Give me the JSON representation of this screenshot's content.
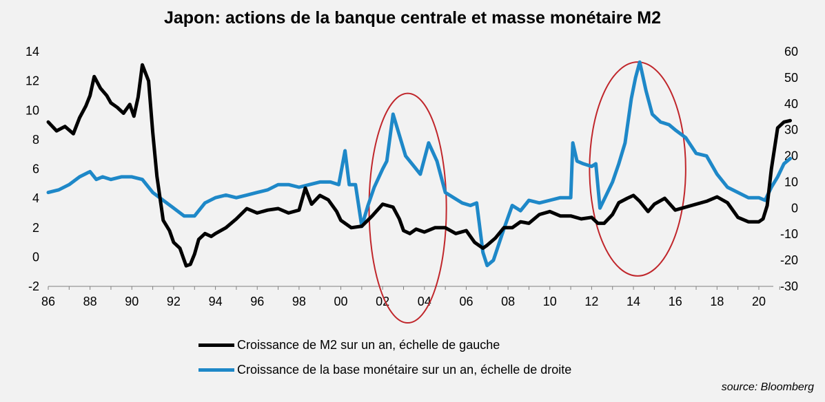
{
  "chart_data": {
    "type": "line",
    "title": "Japon: actions de la banque centrale et masse monétaire M2",
    "source": "source: Bloomberg",
    "x_tick_labels": [
      "86",
      "88",
      "90",
      "92",
      "94",
      "96",
      "98",
      "00",
      "02",
      "04",
      "06",
      "08",
      "10",
      "12",
      "14",
      "16",
      "18",
      "20"
    ],
    "x_ticks": [
      1986,
      1988,
      1990,
      1992,
      1994,
      1996,
      1998,
      2000,
      2002,
      2004,
      2006,
      2008,
      2010,
      2012,
      2014,
      2016,
      2018,
      2020
    ],
    "xlim": [
      1986,
      2021.8
    ],
    "y_left": {
      "ticks": [
        14,
        12,
        10,
        8,
        6,
        4,
        2,
        0,
        -2
      ],
      "ylim": [
        -2,
        14
      ]
    },
    "y_right": {
      "ticks": [
        60,
        50,
        40,
        30,
        20,
        10,
        0,
        -10,
        -20,
        -30
      ],
      "ylim": [
        -30,
        60
      ]
    },
    "legend_placement": "bottom",
    "grid": false,
    "series": [
      {
        "name": "Croissance de M2 sur un an, échelle de gauche",
        "axis": "left",
        "color": "#000000",
        "x": [
          1986.0,
          1986.4,
          1986.8,
          1987.2,
          1987.5,
          1987.8,
          1988.0,
          1988.2,
          1988.5,
          1988.8,
          1989.0,
          1989.3,
          1989.6,
          1989.9,
          1990.1,
          1990.3,
          1990.5,
          1990.8,
          1991.0,
          1991.2,
          1991.5,
          1991.8,
          1992.0,
          1992.3,
          1992.6,
          1992.8,
          1993.0,
          1993.2,
          1993.5,
          1993.8,
          1994.0,
          1994.5,
          1995.0,
          1995.5,
          1996.0,
          1996.5,
          1997.0,
          1997.5,
          1998.0,
          1998.3,
          1998.6,
          1999.0,
          1999.4,
          1999.8,
          2000.0,
          2000.5,
          2001.0,
          2001.5,
          2002.0,
          2002.5,
          2002.8,
          2003.0,
          2003.3,
          2003.6,
          2004.0,
          2004.5,
          2005.0,
          2005.5,
          2006.0,
          2006.4,
          2006.8,
          2007.0,
          2007.4,
          2007.8,
          2008.2,
          2008.6,
          2009.0,
          2009.5,
          2010.0,
          2010.5,
          2011.0,
          2011.5,
          2012.0,
          2012.3,
          2012.6,
          2013.0,
          2013.3,
          2013.7,
          2014.0,
          2014.3,
          2014.7,
          2015.0,
          2015.5,
          2016.0,
          2016.5,
          2017.0,
          2017.5,
          2018.0,
          2018.5,
          2019.0,
          2019.5,
          2020.0,
          2020.2,
          2020.4,
          2020.6,
          2020.9,
          2021.2,
          2021.5
        ],
        "y": [
          9.2,
          8.6,
          8.9,
          8.4,
          9.5,
          10.3,
          11.0,
          12.3,
          11.5,
          11.0,
          10.5,
          10.2,
          9.8,
          10.4,
          9.6,
          10.9,
          13.1,
          12.0,
          8.5,
          5.5,
          2.5,
          1.8,
          1.0,
          0.6,
          -0.6,
          -0.5,
          0.2,
          1.2,
          1.6,
          1.4,
          1.6,
          2.0,
          2.6,
          3.3,
          3.0,
          3.2,
          3.3,
          3.0,
          3.2,
          4.7,
          3.6,
          4.2,
          3.9,
          3.1,
          2.5,
          2.0,
          2.1,
          2.8,
          3.6,
          3.4,
          2.6,
          1.8,
          1.6,
          1.9,
          1.7,
          2.0,
          2.0,
          1.6,
          1.8,
          1.0,
          0.6,
          0.8,
          1.3,
          2.0,
          2.0,
          2.4,
          2.3,
          2.9,
          3.1,
          2.8,
          2.8,
          2.6,
          2.7,
          2.3,
          2.3,
          2.9,
          3.7,
          4.0,
          4.2,
          3.8,
          3.1,
          3.6,
          4.0,
          3.2,
          3.4,
          3.6,
          3.8,
          4.1,
          3.7,
          2.7,
          2.4,
          2.4,
          2.6,
          3.5,
          6.0,
          8.8,
          9.2,
          9.3
        ]
      },
      {
        "name": "Croissance de la base monétaire sur un an, échelle de droite",
        "axis": "right",
        "color": "#1e88c8",
        "x": [
          1986.0,
          1986.5,
          1987.0,
          1987.5,
          1988.0,
          1988.3,
          1988.6,
          1989.0,
          1989.5,
          1990.0,
          1990.5,
          1991.0,
          1991.5,
          1992.0,
          1992.5,
          1993.0,
          1993.5,
          1994.0,
          1994.5,
          1995.0,
          1995.5,
          1996.0,
          1996.5,
          1997.0,
          1997.5,
          1998.0,
          1998.5,
          1999.0,
          1999.5,
          1999.9,
          2000.2,
          2000.4,
          2000.7,
          2001.0,
          2001.3,
          2001.6,
          2002.0,
          2002.2,
          2002.5,
          2002.8,
          2003.1,
          2003.5,
          2003.8,
          2004.2,
          2004.6,
          2005.0,
          2005.4,
          2005.8,
          2006.2,
          2006.5,
          2006.8,
          2007.0,
          2007.3,
          2007.8,
          2008.2,
          2008.6,
          2009.0,
          2009.5,
          2010.0,
          2010.5,
          2011.0,
          2011.1,
          2011.3,
          2011.6,
          2012.0,
          2012.2,
          2012.4,
          2012.7,
          2013.0,
          2013.3,
          2013.6,
          2013.9,
          2014.1,
          2014.3,
          2014.6,
          2014.9,
          2015.3,
          2015.7,
          2016.0,
          2016.5,
          2017.0,
          2017.5,
          2018.0,
          2018.5,
          2019.0,
          2019.5,
          2020.0,
          2020.3,
          2020.6,
          2020.9,
          2021.2,
          2021.5
        ],
        "y": [
          6,
          7,
          9,
          12,
          14,
          11,
          12,
          11,
          12,
          12,
          11,
          6,
          3,
          0,
          -3,
          -3,
          2,
          4,
          5,
          4,
          5,
          6,
          7,
          9,
          9,
          8,
          9,
          10,
          10,
          9,
          22,
          9,
          9,
          -7,
          1,
          8,
          15,
          18,
          36,
          28,
          20,
          16,
          13,
          25,
          18,
          6,
          4,
          2,
          1,
          2,
          -17,
          -22,
          -20,
          -8,
          1,
          -1,
          3,
          2,
          3,
          4,
          4,
          25,
          18,
          17,
          16,
          17,
          0,
          5,
          10,
          17,
          25,
          42,
          50,
          56,
          45,
          36,
          33,
          32,
          30,
          27,
          21,
          20,
          13,
          8,
          6,
          4,
          4,
          3,
          8,
          12,
          17,
          19
        ]
      }
    ],
    "annotations": [
      {
        "shape": "ellipse",
        "color": "#c0262b",
        "x_center": 2003.2,
        "y_right_center": 0,
        "x_half_width": 1.85,
        "y_right_half_height": 44
      },
      {
        "shape": "ellipse",
        "color": "#c0262b",
        "x_center": 2014.2,
        "y_right_center": 15,
        "x_half_width": 2.3,
        "y_right_half_height": 41
      }
    ]
  }
}
